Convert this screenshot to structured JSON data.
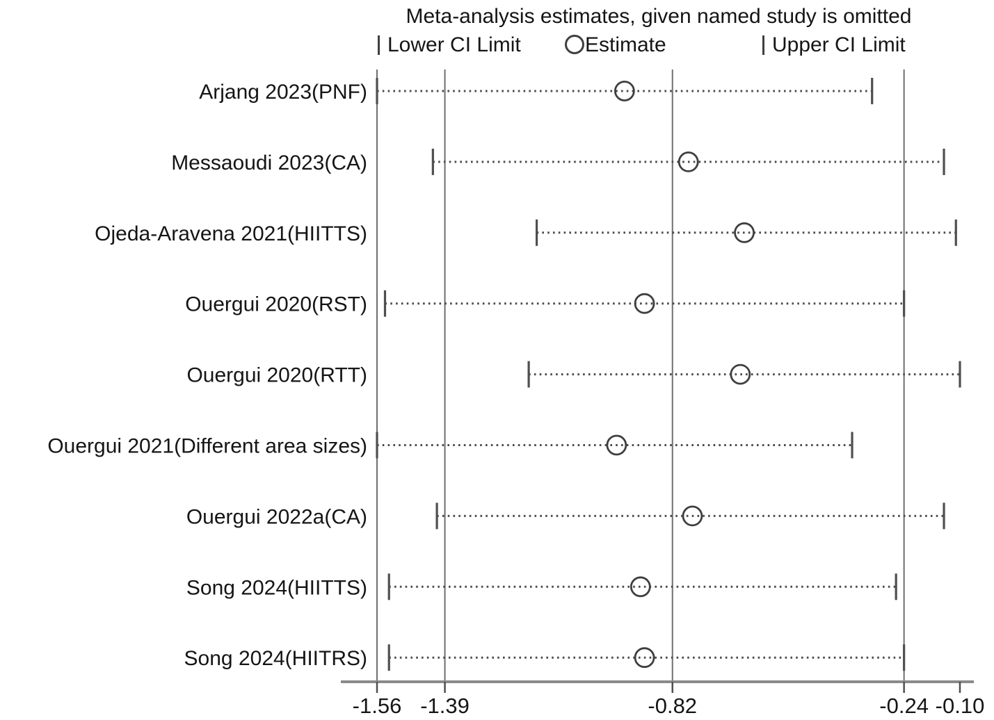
{
  "chart_data": {
    "type": "forest",
    "title": "Meta-analysis estimates, given named study is omitted",
    "legend": [
      {
        "symbol": "tick",
        "label": "Lower CI Limit"
      },
      {
        "symbol": "circle",
        "label": "Estimate"
      },
      {
        "symbol": "tick",
        "label": "Upper CI Limit"
      }
    ],
    "xlim": [
      -1.56,
      -0.1
    ],
    "x_ticks": [
      -1.56,
      -1.39,
      -0.82,
      -0.24,
      -0.1
    ],
    "x_tick_labels": [
      "-1.56",
      "-1.39",
      "-0.82",
      "-0.24",
      "-0.10"
    ],
    "reference_lines": [
      -1.56,
      -1.39,
      -0.82,
      -0.24
    ],
    "studies": [
      {
        "label": "Arjang 2023(PNF)",
        "lower": -1.56,
        "estimate": -0.94,
        "upper": -0.32
      },
      {
        "label": "Messaoudi 2023(CA)",
        "lower": -1.42,
        "estimate": -0.78,
        "upper": -0.14
      },
      {
        "label": "Ojeda-Aravena 2021(HIITTS)",
        "lower": -1.16,
        "estimate": -0.64,
        "upper": -0.11
      },
      {
        "label": "Ouergui 2020(RST)",
        "lower": -1.54,
        "estimate": -0.89,
        "upper": -0.24
      },
      {
        "label": "Ouergui 2020(RTT)",
        "lower": -1.18,
        "estimate": -0.65,
        "upper": -0.1
      },
      {
        "label": "Ouergui 2021(Different area sizes)",
        "lower": -1.56,
        "estimate": -0.96,
        "upper": -0.37
      },
      {
        "label": "Ouergui 2022a(CA)",
        "lower": -1.41,
        "estimate": -0.77,
        "upper": -0.14
      },
      {
        "label": "Song 2024(HIITTS)",
        "lower": -1.53,
        "estimate": -0.9,
        "upper": -0.26
      },
      {
        "label": "Song 2024(HIITRS)",
        "lower": -1.53,
        "estimate": -0.89,
        "upper": -0.24
      }
    ],
    "grid": false,
    "legend_position": "top",
    "colors": {
      "text": "#151515",
      "reference_line": "#6e6e6e",
      "axis_line": "#8a8a8a",
      "ci_dots": "#4b4b4b",
      "ci_tick": "#4f4f4f",
      "marker_stroke": "#3f3f3f"
    }
  }
}
